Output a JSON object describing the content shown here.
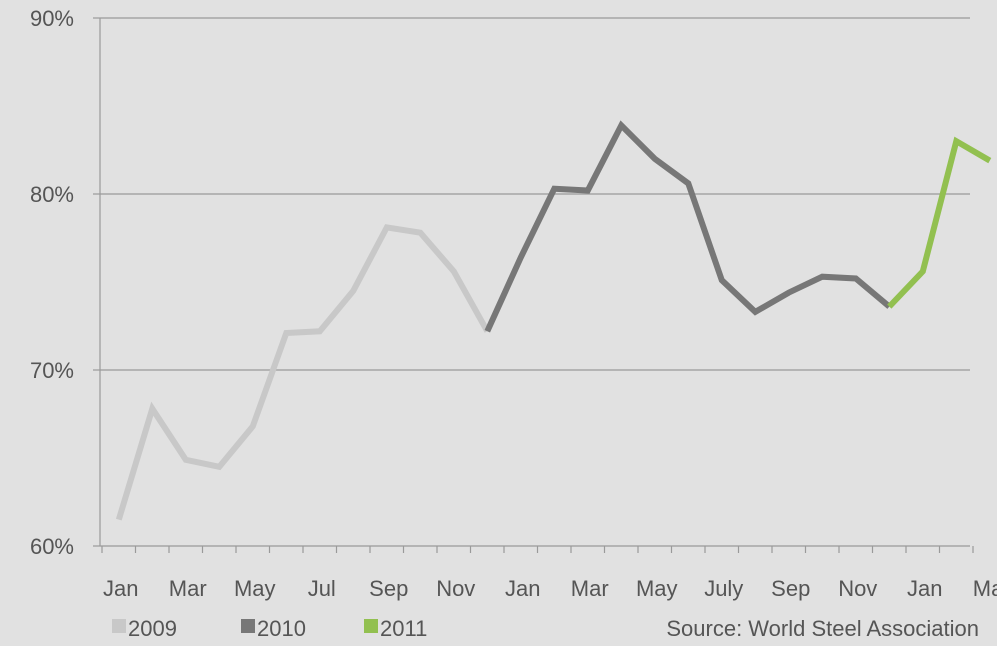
{
  "chart_data": {
    "type": "line",
    "ylim": [
      60,
      90
    ],
    "yticks": [
      60,
      70,
      80,
      90
    ],
    "ytick_labels": [
      "60%",
      "70%",
      "80%",
      "90%"
    ],
    "x_tick_labels": [
      "Jan",
      "Mar",
      "May",
      "Jul",
      "Sep",
      "Nov",
      "Jan",
      "Mar",
      "May",
      "July",
      "Sep",
      "Nov",
      "Jan",
      "Mar"
    ],
    "grid": true,
    "legend_position": "bottom-left",
    "series": [
      {
        "name": "2009",
        "color": "#c8c8c8",
        "x": [
          1,
          2,
          3,
          4,
          5,
          6,
          7,
          8,
          9,
          10,
          11,
          12
        ],
        "values": [
          61.5,
          67.8,
          64.9,
          64.5,
          66.8,
          72.1,
          72.2,
          74.5,
          78.1,
          77.8,
          75.6,
          72.2
        ]
      },
      {
        "name": "2010",
        "color": "#777777",
        "x": [
          12,
          13,
          14,
          15,
          16,
          17,
          18,
          19,
          20,
          21,
          22,
          23,
          24
        ],
        "values": [
          72.2,
          76.4,
          80.3,
          80.2,
          83.9,
          82.0,
          80.6,
          75.1,
          73.3,
          74.4,
          75.3,
          75.2,
          73.6
        ]
      },
      {
        "name": "2011",
        "color": "#92c050",
        "x": [
          24,
          25,
          26,
          27
        ],
        "values": [
          73.6,
          75.6,
          83.0,
          81.9
        ]
      }
    ],
    "source": "Source: World Steel Association"
  }
}
